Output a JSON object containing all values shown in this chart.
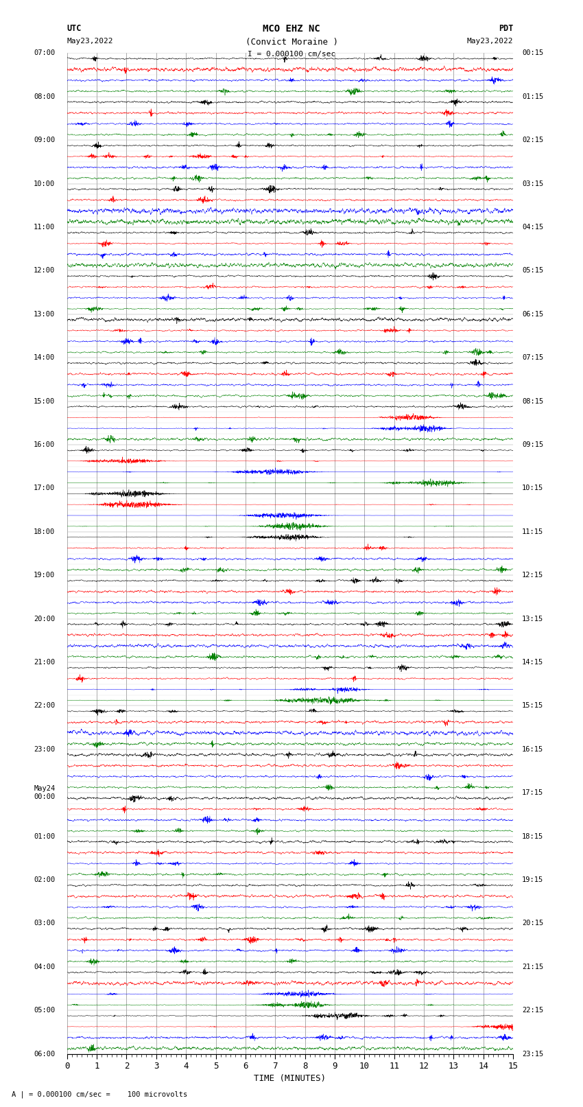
{
  "title_line1": "MCO EHZ NC",
  "title_line2": "(Convict Moraine )",
  "scale_text": "I = 0.000100 cm/sec",
  "footer_text": "A  | = 0.000100 cm/sec =    100 microvolts",
  "left_label_top": "UTC",
  "left_label_date": "May23,2022",
  "right_label_top": "PDT",
  "right_label_date": "May23,2022",
  "xlabel": "TIME (MINUTES)",
  "bg_color": "#ffffff",
  "trace_colors": [
    "black",
    "red",
    "blue",
    "green"
  ],
  "grid_color": "#999999",
  "utc_labels": [
    "07:00",
    "08:00",
    "09:00",
    "10:00",
    "11:00",
    "12:00",
    "13:00",
    "14:00",
    "15:00",
    "16:00",
    "17:00",
    "18:00",
    "19:00",
    "20:00",
    "21:00",
    "22:00",
    "23:00",
    "May24\n00:00",
    "01:00",
    "02:00",
    "03:00",
    "04:00",
    "05:00",
    "06:00"
  ],
  "pdt_labels": [
    "00:15",
    "01:15",
    "02:15",
    "03:15",
    "04:15",
    "05:15",
    "06:15",
    "07:15",
    "08:15",
    "09:15",
    "10:15",
    "11:15",
    "12:15",
    "13:15",
    "14:15",
    "15:15",
    "16:15",
    "17:15",
    "18:15",
    "19:15",
    "20:15",
    "21:15",
    "22:15",
    "23:15"
  ],
  "n_hours": 23,
  "traces_per_hour": 4,
  "minutes": 15,
  "sample_rate": 100,
  "fig_width": 8.5,
  "fig_height": 16.13,
  "seed": 42
}
